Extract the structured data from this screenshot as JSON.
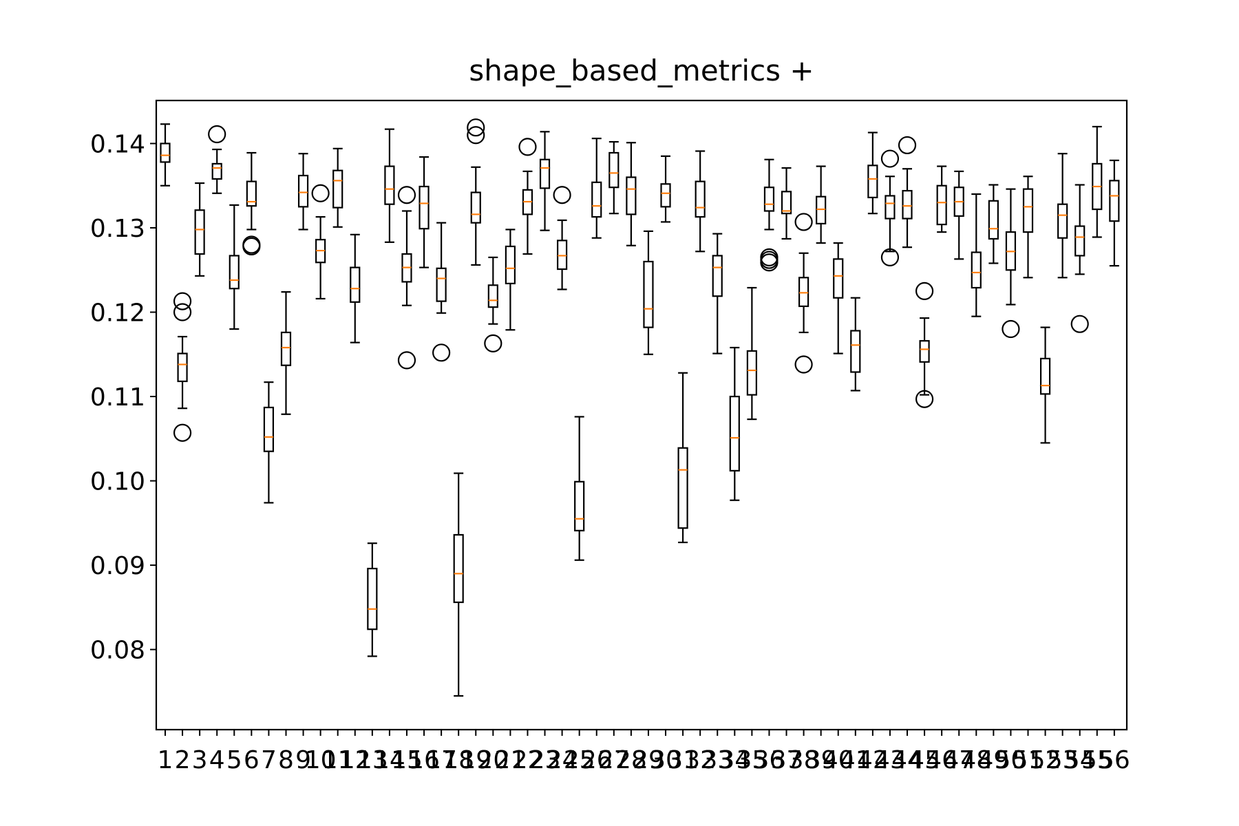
{
  "chart_data": {
    "type": "boxplot",
    "title": "shape_based_metrics +",
    "xlabel": "",
    "ylabel": "",
    "ylim": [
      0.0705,
      0.1451
    ],
    "yticks": [
      0.08,
      0.09,
      0.1,
      0.11,
      0.12,
      0.13,
      0.14
    ],
    "ytick_labels": [
      "0.08",
      "0.09",
      "0.10",
      "0.11",
      "0.12",
      "0.13",
      "0.14"
    ],
    "grid": false,
    "colors": {
      "box": "#000000",
      "median": "#ff7f0e",
      "flier": "#000000"
    },
    "categories": [
      "1",
      "2",
      "3",
      "4",
      "5",
      "6",
      "7",
      "8",
      "9",
      "10",
      "11",
      "12",
      "13",
      "14",
      "15",
      "16",
      "17",
      "18",
      "19",
      "20",
      "21",
      "22",
      "23",
      "24",
      "25",
      "26",
      "27",
      "28",
      "29",
      "30",
      "31",
      "32",
      "33",
      "34",
      "35",
      "36",
      "37",
      "38",
      "39",
      "40",
      "41",
      "42",
      "43",
      "44",
      "45",
      "46",
      "47",
      "48",
      "49",
      "50",
      "51",
      "52",
      "53",
      "54",
      "55",
      "56"
    ],
    "boxes": [
      {
        "whislo": 0.135,
        "q1": 0.1378,
        "med": 0.1386,
        "q3": 0.14,
        "whishi": 0.1423,
        "fliers": []
      },
      {
        "whislo": 0.1086,
        "q1": 0.1118,
        "med": 0.1138,
        "q3": 0.1151,
        "whishi": 0.1171,
        "fliers": [
          0.1213,
          0.12,
          0.1057
        ]
      },
      {
        "whislo": 0.1243,
        "q1": 0.1269,
        "med": 0.1298,
        "q3": 0.1321,
        "whishi": 0.1353,
        "fliers": []
      },
      {
        "whislo": 0.1341,
        "q1": 0.1358,
        "med": 0.1371,
        "q3": 0.1376,
        "whishi": 0.1393,
        "fliers": [
          0.1411
        ]
      },
      {
        "whislo": 0.118,
        "q1": 0.1228,
        "med": 0.1238,
        "q3": 0.1267,
        "whishi": 0.1327,
        "fliers": []
      },
      {
        "whislo": 0.1298,
        "q1": 0.1326,
        "med": 0.1331,
        "q3": 0.1355,
        "whishi": 0.1389,
        "fliers": [
          0.128,
          0.1278
        ]
      },
      {
        "whislo": 0.0974,
        "q1": 0.1035,
        "med": 0.1052,
        "q3": 0.1087,
        "whishi": 0.1117,
        "fliers": []
      },
      {
        "whislo": 0.1079,
        "q1": 0.1137,
        "med": 0.1158,
        "q3": 0.1176,
        "whishi": 0.1224,
        "fliers": []
      },
      {
        "whislo": 0.1298,
        "q1": 0.1325,
        "med": 0.1342,
        "q3": 0.1362,
        "whishi": 0.1388,
        "fliers": []
      },
      {
        "whislo": 0.1216,
        "q1": 0.1259,
        "med": 0.1273,
        "q3": 0.1286,
        "whishi": 0.1313,
        "fliers": [
          0.1341
        ]
      },
      {
        "whislo": 0.1301,
        "q1": 0.1324,
        "med": 0.1356,
        "q3": 0.1368,
        "whishi": 0.1394,
        "fliers": []
      },
      {
        "whislo": 0.1164,
        "q1": 0.1212,
        "med": 0.1228,
        "q3": 0.1253,
        "whishi": 0.1292,
        "fliers": []
      },
      {
        "whislo": 0.0792,
        "q1": 0.0824,
        "med": 0.0848,
        "q3": 0.0896,
        "whishi": 0.0926,
        "fliers": []
      },
      {
        "whislo": 0.1283,
        "q1": 0.1328,
        "med": 0.1346,
        "q3": 0.1373,
        "whishi": 0.1417,
        "fliers": []
      },
      {
        "whislo": 0.1208,
        "q1": 0.1236,
        "med": 0.1253,
        "q3": 0.1269,
        "whishi": 0.132,
        "fliers": [
          0.1339,
          0.1143
        ]
      },
      {
        "whislo": 0.1253,
        "q1": 0.1299,
        "med": 0.1329,
        "q3": 0.1349,
        "whishi": 0.1384,
        "fliers": []
      },
      {
        "whislo": 0.1199,
        "q1": 0.1213,
        "med": 0.124,
        "q3": 0.1252,
        "whishi": 0.1306,
        "fliers": [
          0.1152
        ]
      },
      {
        "whislo": 0.0745,
        "q1": 0.0856,
        "med": 0.089,
        "q3": 0.0936,
        "whishi": 0.1009,
        "fliers": []
      },
      {
        "whislo": 0.1256,
        "q1": 0.1306,
        "med": 0.1316,
        "q3": 0.1342,
        "whishi": 0.1372,
        "fliers": [
          0.1419,
          0.141
        ]
      },
      {
        "whislo": 0.1186,
        "q1": 0.1206,
        "med": 0.1214,
        "q3": 0.1232,
        "whishi": 0.1265,
        "fliers": [
          0.1163
        ]
      },
      {
        "whislo": 0.1179,
        "q1": 0.1234,
        "med": 0.1252,
        "q3": 0.1278,
        "whishi": 0.1298,
        "fliers": []
      },
      {
        "whislo": 0.1269,
        "q1": 0.1316,
        "med": 0.1331,
        "q3": 0.1345,
        "whishi": 0.1367,
        "fliers": [
          0.1396
        ]
      },
      {
        "whislo": 0.1297,
        "q1": 0.1347,
        "med": 0.1371,
        "q3": 0.1381,
        "whishi": 0.1414,
        "fliers": []
      },
      {
        "whislo": 0.1227,
        "q1": 0.1251,
        "med": 0.1267,
        "q3": 0.1285,
        "whishi": 0.1309,
        "fliers": [
          0.1339
        ]
      },
      {
        "whislo": 0.0906,
        "q1": 0.0941,
        "med": 0.0955,
        "q3": 0.0999,
        "whishi": 0.1076,
        "fliers": []
      },
      {
        "whislo": 0.1288,
        "q1": 0.1313,
        "med": 0.1326,
        "q3": 0.1354,
        "whishi": 0.1406,
        "fliers": []
      },
      {
        "whislo": 0.1317,
        "q1": 0.1348,
        "med": 0.1365,
        "q3": 0.1389,
        "whishi": 0.1402,
        "fliers": []
      },
      {
        "whislo": 0.1279,
        "q1": 0.1316,
        "med": 0.1346,
        "q3": 0.136,
        "whishi": 0.1401,
        "fliers": []
      },
      {
        "whislo": 0.115,
        "q1": 0.1182,
        "med": 0.1204,
        "q3": 0.126,
        "whishi": 0.1296,
        "fliers": []
      },
      {
        "whislo": 0.1307,
        "q1": 0.1325,
        "med": 0.1341,
        "q3": 0.1352,
        "whishi": 0.1385,
        "fliers": []
      },
      {
        "whislo": 0.0927,
        "q1": 0.0944,
        "med": 0.1013,
        "q3": 0.1039,
        "whishi": 0.1128,
        "fliers": []
      },
      {
        "whislo": 0.1272,
        "q1": 0.1313,
        "med": 0.1324,
        "q3": 0.1355,
        "whishi": 0.1391,
        "fliers": []
      },
      {
        "whislo": 0.1151,
        "q1": 0.1219,
        "med": 0.1253,
        "q3": 0.1267,
        "whishi": 0.1293,
        "fliers": []
      },
      {
        "whislo": 0.0977,
        "q1": 0.1012,
        "med": 0.1051,
        "q3": 0.11,
        "whishi": 0.1158,
        "fliers": []
      },
      {
        "whislo": 0.1073,
        "q1": 0.1102,
        "med": 0.1131,
        "q3": 0.1154,
        "whishi": 0.1229,
        "fliers": []
      },
      {
        "whislo": 0.1298,
        "q1": 0.132,
        "med": 0.1328,
        "q3": 0.1348,
        "whishi": 0.1381,
        "fliers": [
          0.1265,
          0.1262,
          0.1259
        ]
      },
      {
        "whislo": 0.1287,
        "q1": 0.1317,
        "med": 0.132,
        "q3": 0.1343,
        "whishi": 0.1371,
        "fliers": []
      },
      {
        "whislo": 0.1176,
        "q1": 0.1207,
        "med": 0.1223,
        "q3": 0.1241,
        "whishi": 0.127,
        "fliers": [
          0.1307,
          0.1138
        ]
      },
      {
        "whislo": 0.1282,
        "q1": 0.1305,
        "med": 0.1322,
        "q3": 0.1337,
        "whishi": 0.1373,
        "fliers": []
      },
      {
        "whislo": 0.1151,
        "q1": 0.1217,
        "med": 0.1243,
        "q3": 0.1263,
        "whishi": 0.1282,
        "fliers": []
      },
      {
        "whislo": 0.1107,
        "q1": 0.1129,
        "med": 0.1161,
        "q3": 0.1178,
        "whishi": 0.1217,
        "fliers": []
      },
      {
        "whislo": 0.1317,
        "q1": 0.1336,
        "med": 0.1358,
        "q3": 0.1374,
        "whishi": 0.1413,
        "fliers": []
      },
      {
        "whislo": 0.1272,
        "q1": 0.1311,
        "med": 0.1329,
        "q3": 0.1338,
        "whishi": 0.1361,
        "fliers": [
          0.1382,
          0.1265
        ]
      },
      {
        "whislo": 0.1277,
        "q1": 0.1311,
        "med": 0.1326,
        "q3": 0.1344,
        "whishi": 0.137,
        "fliers": [
          0.1398
        ]
      },
      {
        "whislo": 0.1102,
        "q1": 0.1141,
        "med": 0.1156,
        "q3": 0.1166,
        "whishi": 0.1193,
        "fliers": [
          0.1225,
          0.1097
        ]
      },
      {
        "whislo": 0.1295,
        "q1": 0.1304,
        "med": 0.133,
        "q3": 0.135,
        "whishi": 0.1373,
        "fliers": []
      },
      {
        "whislo": 0.1263,
        "q1": 0.1314,
        "med": 0.1331,
        "q3": 0.1348,
        "whishi": 0.1367,
        "fliers": []
      },
      {
        "whislo": 0.1195,
        "q1": 0.1229,
        "med": 0.1247,
        "q3": 0.1271,
        "whishi": 0.134,
        "fliers": []
      },
      {
        "whislo": 0.1258,
        "q1": 0.1287,
        "med": 0.1299,
        "q3": 0.1332,
        "whishi": 0.1351,
        "fliers": []
      },
      {
        "whislo": 0.1209,
        "q1": 0.125,
        "med": 0.1272,
        "q3": 0.1295,
        "whishi": 0.1346,
        "fliers": [
          0.118
        ]
      },
      {
        "whislo": 0.1241,
        "q1": 0.1295,
        "med": 0.1325,
        "q3": 0.1346,
        "whishi": 0.1361,
        "fliers": []
      },
      {
        "whislo": 0.1045,
        "q1": 0.1103,
        "med": 0.1113,
        "q3": 0.1145,
        "whishi": 0.1182,
        "fliers": []
      },
      {
        "whislo": 0.1241,
        "q1": 0.1288,
        "med": 0.1315,
        "q3": 0.1328,
        "whishi": 0.1388,
        "fliers": []
      },
      {
        "whislo": 0.1245,
        "q1": 0.1267,
        "med": 0.1289,
        "q3": 0.1302,
        "whishi": 0.1351,
        "fliers": [
          0.1186
        ]
      },
      {
        "whislo": 0.1289,
        "q1": 0.1322,
        "med": 0.1349,
        "q3": 0.1376,
        "whishi": 0.142,
        "fliers": []
      },
      {
        "whislo": 0.1255,
        "q1": 0.1308,
        "med": 0.1338,
        "q3": 0.1356,
        "whishi": 0.138,
        "fliers": []
      }
    ]
  }
}
